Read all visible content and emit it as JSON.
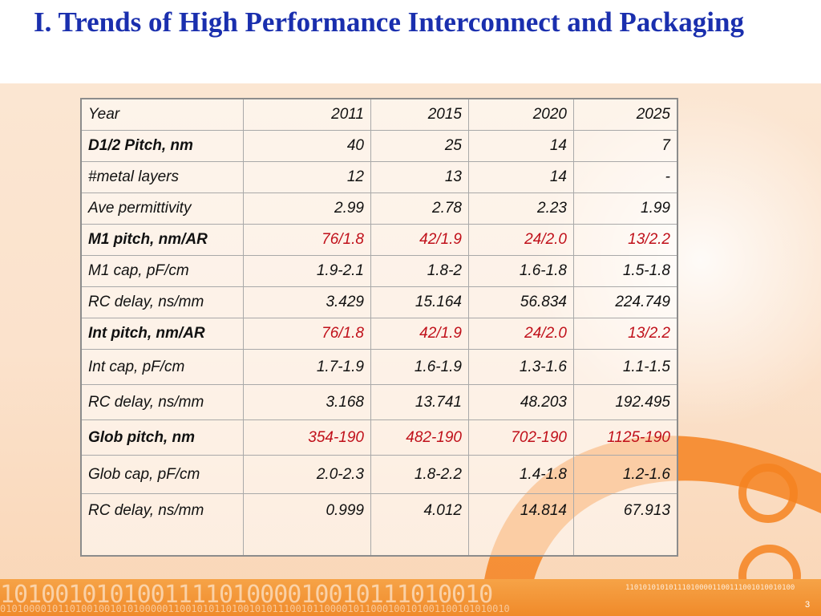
{
  "slide": {
    "title": "I. Trends of High Performance Interconnect and Packaging",
    "page_number": "3"
  },
  "colors": {
    "title": "#1a2fae",
    "highlight_values": "#c0101a",
    "accent_orange": "#f07a1a"
  },
  "table": {
    "header": {
      "label": "Year",
      "values": [
        "2011",
        "2015",
        "2020",
        "2025"
      ]
    },
    "rows": [
      {
        "label": "D1/2 Pitch, nm",
        "values": [
          "40",
          "25",
          "14",
          "7"
        ]
      },
      {
        "label": "#metal layers",
        "values": [
          "12",
          "13",
          "14",
          "-"
        ]
      },
      {
        "label": "Ave permittivity",
        "values": [
          "2.99",
          "2.78",
          "2.23",
          "1.99"
        ]
      },
      {
        "label": "M1 pitch, nm/AR",
        "values": [
          "76/1.8",
          "42/1.9",
          "24/2.0",
          "13/2.2"
        ]
      },
      {
        "label": "M1 cap, pF/cm",
        "values": [
          "1.9-2.1",
          "1.8-2",
          "1.6-1.8",
          "1.5-1.8"
        ]
      },
      {
        "label": "RC delay, ns/mm",
        "values": [
          "3.429",
          "15.164",
          "56.834",
          "224.749"
        ]
      },
      {
        "label": "Int pitch, nm/AR",
        "values": [
          "76/1.8",
          "42/1.9",
          "24/2.0",
          "13/2.2"
        ]
      },
      {
        "label": "Int cap, pF/cm",
        "values": [
          "1.7-1.9",
          "1.6-1.9",
          "1.3-1.6",
          "1.1-1.5"
        ]
      },
      {
        "label": "RC delay, ns/mm",
        "values": [
          "3.168",
          "13.741",
          "48.203",
          "192.495"
        ]
      },
      {
        "label": "Glob pitch, nm",
        "values": [
          "354-190",
          "482-190",
          "702-190",
          "1125-190"
        ]
      },
      {
        "label": "Glob cap, pF/cm",
        "values": [
          "2.0-2.3",
          "1.8-2.2",
          "1.4-1.8",
          "1.2-1.6"
        ]
      },
      {
        "label": "RC delay, ns/mm",
        "values": [
          "0.999",
          "4.012",
          "14.814",
          "67.913"
        ]
      }
    ]
  }
}
